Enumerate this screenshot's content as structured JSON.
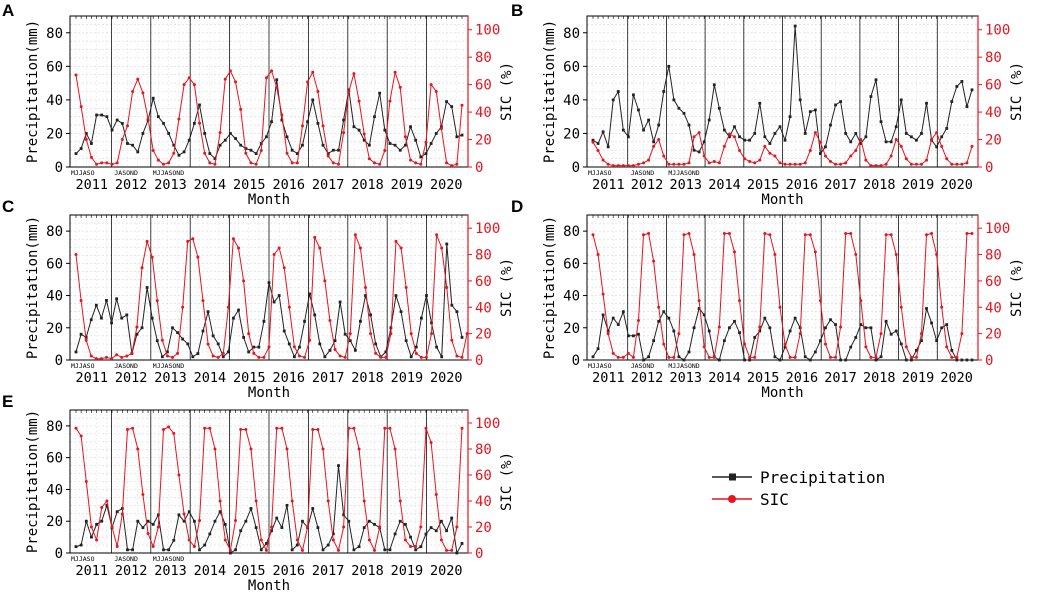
{
  "legend": {
    "items": [
      {
        "label": "Precipitation",
        "color": "#222222",
        "marker": "square"
      },
      {
        "label": "SIC",
        "color": "#e8141e",
        "marker": "circle"
      }
    ]
  },
  "chart_data": [
    {
      "type": "line",
      "panel": "A",
      "title": "",
      "xlabel": "Month",
      "ylabel": "Precipitation(mm)",
      "y2label": "SIC (%)",
      "ylim": [
        0,
        90
      ],
      "y2lim": [
        0,
        110
      ],
      "x_ticks": [
        "2011",
        "2012",
        "2013",
        "2014",
        "2015",
        "2016",
        "2017",
        "2018",
        "2019",
        "2020"
      ],
      "month_ticks": [
        "MJJASO",
        "JASOND",
        "MJJASOND"
      ],
      "series": [
        {
          "name": "Precipitation",
          "axis": "left",
          "values": [
            8,
            11,
            20,
            14,
            31,
            31,
            30,
            22,
            28,
            26,
            14,
            13,
            9,
            20,
            28,
            41,
            30,
            26,
            20,
            13,
            7,
            9,
            16,
            26,
            37,
            20,
            8,
            5,
            13,
            16,
            20,
            17,
            13,
            11,
            10,
            8,
            14,
            18,
            27,
            52,
            28,
            18,
            10,
            8,
            13,
            27,
            40,
            26,
            13,
            8,
            10,
            10,
            28,
            46,
            24,
            22,
            16,
            13,
            30,
            44,
            22,
            14,
            13,
            10,
            13,
            24,
            16,
            6,
            8,
            14,
            20,
            24,
            39,
            36,
            18,
            19
          ]
        },
        {
          "name": "SIC",
          "axis": "right",
          "values": [
            67,
            44,
            20,
            7,
            2,
            3,
            3,
            2,
            3,
            20,
            30,
            55,
            64,
            54,
            35,
            12,
            5,
            2,
            3,
            10,
            35,
            60,
            65,
            60,
            32,
            10,
            3,
            2,
            25,
            64,
            70,
            62,
            42,
            10,
            3,
            2,
            12,
            65,
            70,
            58,
            38,
            10,
            3,
            3,
            30,
            62,
            69,
            55,
            30,
            8,
            3,
            2,
            25,
            55,
            68,
            48,
            24,
            6,
            3,
            2,
            12,
            48,
            69,
            58,
            22,
            5,
            3,
            2,
            18,
            60,
            55,
            28,
            3,
            1,
            2,
            45
          ]
        }
      ]
    },
    {
      "type": "line",
      "panel": "B",
      "title": "",
      "xlabel": "Month",
      "ylabel": "Precipitation(mm)",
      "y2label": "SIC (%)",
      "ylim": [
        0,
        90
      ],
      "y2lim": [
        0,
        110
      ],
      "x_ticks": [
        "2011",
        "2012",
        "2013",
        "2014",
        "2015",
        "2016",
        "2017",
        "2018",
        "2019",
        "2020"
      ],
      "month_ticks": [
        "MJJASO",
        "JASOND",
        "MJJASOND"
      ],
      "series": [
        {
          "name": "Precipitation",
          "axis": "left",
          "values": [
            16,
            14,
            21,
            12,
            40,
            45,
            22,
            18,
            43,
            34,
            22,
            28,
            15,
            25,
            45,
            60,
            40,
            35,
            32,
            25,
            10,
            9,
            15,
            28,
            49,
            35,
            22,
            18,
            24,
            18,
            16,
            16,
            20,
            38,
            18,
            14,
            20,
            24,
            16,
            30,
            84,
            40,
            20,
            33,
            34,
            8,
            12,
            25,
            37,
            39,
            20,
            15,
            20,
            14,
            18,
            42,
            52,
            27,
            15,
            15,
            24,
            40,
            20,
            18,
            16,
            20,
            38,
            16,
            12,
            18,
            23,
            39,
            48,
            51,
            36,
            46
          ]
        },
        {
          "name": "SIC",
          "axis": "right",
          "values": [
            18,
            12,
            5,
            2,
            1,
            1,
            1,
            1,
            1,
            2,
            3,
            5,
            15,
            20,
            8,
            2,
            2,
            2,
            2,
            3,
            22,
            25,
            8,
            3,
            4,
            3,
            15,
            24,
            22,
            12,
            6,
            4,
            3,
            5,
            15,
            10,
            8,
            3,
            2,
            2,
            2,
            2,
            3,
            12,
            25,
            18,
            8,
            4,
            2,
            2,
            3,
            8,
            12,
            20,
            5,
            1,
            1,
            1,
            2,
            8,
            20,
            15,
            6,
            2,
            2,
            2,
            5,
            20,
            25,
            15,
            6,
            2,
            2,
            2,
            3,
            15
          ]
        }
      ]
    },
    {
      "type": "line",
      "panel": "C",
      "title": "",
      "xlabel": "Month",
      "ylabel": "Precipitation(mm)",
      "y2label": "SIC (%)",
      "ylim": [
        0,
        90
      ],
      "y2lim": [
        0,
        110
      ],
      "x_ticks": [
        "2011",
        "2012",
        "2013",
        "2014",
        "2015",
        "2016",
        "2017",
        "2018",
        "2019",
        "2020"
      ],
      "month_ticks": [
        "MJJASO",
        "JASOND",
        "MJJASOND"
      ],
      "series": [
        {
          "name": "Precipitation",
          "axis": "left",
          "values": [
            5,
            16,
            14,
            25,
            34,
            26,
            37,
            23,
            38,
            26,
            28,
            4,
            16,
            20,
            45,
            26,
            12,
            2,
            5,
            20,
            17,
            13,
            10,
            2,
            4,
            18,
            30,
            15,
            10,
            2,
            5,
            26,
            31,
            14,
            5,
            8,
            8,
            24,
            48,
            36,
            40,
            18,
            10,
            2,
            8,
            24,
            41,
            28,
            10,
            2,
            6,
            12,
            36,
            16,
            12,
            6,
            24,
            40,
            28,
            10,
            2,
            5,
            20,
            40,
            30,
            12,
            2,
            8,
            26,
            40,
            23,
            8,
            2,
            72,
            34,
            30,
            14
          ]
        },
        {
          "name": "SIC",
          "axis": "right",
          "values": [
            80,
            45,
            15,
            3,
            1,
            1,
            2,
            1,
            4,
            2,
            3,
            5,
            25,
            70,
            90,
            78,
            45,
            15,
            3,
            2,
            5,
            40,
            90,
            92,
            78,
            45,
            12,
            3,
            2,
            5,
            40,
            92,
            85,
            60,
            20,
            5,
            2,
            2,
            10,
            80,
            85,
            70,
            40,
            10,
            3,
            2,
            15,
            93,
            85,
            60,
            30,
            8,
            3,
            2,
            20,
            95,
            85,
            55,
            20,
            5,
            2,
            2,
            20,
            90,
            85,
            55,
            20,
            5,
            2,
            2,
            20,
            95,
            85,
            55,
            15,
            3,
            2,
            20
          ]
        }
      ]
    },
    {
      "type": "line",
      "panel": "D",
      "title": "",
      "xlabel": "Month",
      "ylabel": "Precipitation(mm)",
      "y2label": "SIC (%)",
      "ylim": [
        0,
        90
      ],
      "y2lim": [
        0,
        110
      ],
      "x_ticks": [
        "2011",
        "2012",
        "2013",
        "2014",
        "2015",
        "2016",
        "2017",
        "2018",
        "2019",
        "2020"
      ],
      "month_ticks": [
        "MJJASO",
        "JASOND",
        "MJJASOND"
      ],
      "series": [
        {
          "name": "Precipitation",
          "axis": "left",
          "values": [
            2,
            7,
            28,
            18,
            26,
            22,
            30,
            15,
            15,
            16,
            0,
            2,
            12,
            24,
            30,
            26,
            18,
            2,
            0,
            5,
            20,
            32,
            28,
            18,
            2,
            0,
            12,
            20,
            24,
            17,
            0,
            0,
            14,
            18,
            26,
            20,
            2,
            0,
            8,
            18,
            26,
            20,
            2,
            0,
            5,
            12,
            20,
            25,
            22,
            0,
            0,
            8,
            14,
            22,
            20,
            20,
            0,
            2,
            24,
            16,
            18,
            10,
            0,
            0,
            6,
            12,
            32,
            23,
            12,
            20,
            22,
            6,
            0,
            0,
            0,
            0
          ]
        },
        {
          "name": "SIC",
          "axis": "right",
          "values": [
            95,
            80,
            50,
            20,
            5,
            2,
            2,
            5,
            2,
            30,
            95,
            96,
            75,
            40,
            12,
            2,
            2,
            20,
            95,
            96,
            80,
            45,
            10,
            2,
            2,
            25,
            96,
            96,
            82,
            45,
            12,
            2,
            2,
            25,
            96,
            95,
            80,
            40,
            12,
            2,
            2,
            20,
            95,
            95,
            82,
            45,
            12,
            2,
            2,
            25,
            96,
            96,
            80,
            45,
            10,
            2,
            2,
            20,
            95,
            95,
            80,
            40,
            10,
            2,
            2,
            20,
            95,
            96,
            80,
            40,
            10,
            2,
            2,
            20,
            96,
            96
          ]
        }
      ]
    },
    {
      "type": "line",
      "panel": "E",
      "title": "",
      "xlabel": "Month",
      "ylabel": "Precipitation(mm)",
      "y2label": "SIC (%)",
      "ylim": [
        0,
        90
      ],
      "y2lim": [
        0,
        110
      ],
      "x_ticks": [
        "2011",
        "2012",
        "2013",
        "2014",
        "2015",
        "2016",
        "2017",
        "2018",
        "2019",
        "2020"
      ],
      "month_ticks": [
        "MJJASO",
        "JASOND",
        "MJJASOND"
      ],
      "series": [
        {
          "name": "Precipitation",
          "axis": "left",
          "values": [
            4,
            5,
            20,
            10,
            18,
            20,
            30,
            16,
            26,
            28,
            2,
            2,
            20,
            16,
            20,
            18,
            24,
            2,
            2,
            8,
            24,
            20,
            26,
            20,
            2,
            5,
            12,
            20,
            26,
            18,
            0,
            2,
            14,
            20,
            28,
            16,
            2,
            6,
            14,
            22,
            16,
            30,
            2,
            5,
            20,
            16,
            28,
            16,
            2,
            5,
            12,
            55,
            24,
            20,
            2,
            4,
            16,
            20,
            18,
            16,
            2,
            2,
            12,
            20,
            18,
            10,
            2,
            4,
            12,
            16,
            14,
            20,
            14,
            22,
            0,
            6
          ]
        },
        {
          "name": "SIC",
          "axis": "right",
          "values": [
            96,
            90,
            55,
            20,
            10,
            35,
            40,
            20,
            5,
            30,
            95,
            96,
            80,
            45,
            15,
            5,
            20,
            95,
            97,
            92,
            60,
            30,
            10,
            5,
            25,
            96,
            96,
            80,
            40,
            10,
            2,
            25,
            95,
            95,
            80,
            40,
            10,
            2,
            20,
            96,
            96,
            80,
            40,
            10,
            2,
            20,
            95,
            95,
            80,
            40,
            10,
            2,
            20,
            96,
            96,
            80,
            40,
            10,
            2,
            20,
            96,
            96,
            80,
            40,
            10,
            5,
            5,
            20,
            96,
            85,
            45,
            10,
            2,
            2,
            20,
            96
          ]
        }
      ]
    }
  ]
}
